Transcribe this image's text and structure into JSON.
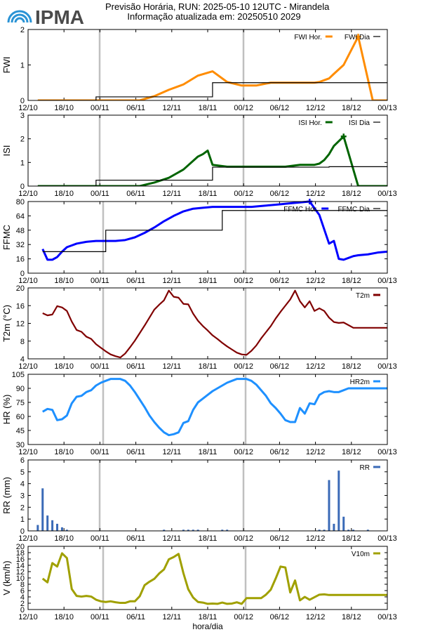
{
  "header": {
    "brand": "IPMA",
    "title_line1": "Previsão Horária, RUN: 2025-05-10 12UTC - Mirandela",
    "title_line2": "Informação atualizada em: 20250510 2029"
  },
  "colors": {
    "fwi": "#ff8c00",
    "isi": "#006400",
    "ffmc": "#0000ff",
    "t2m": "#800000",
    "hr2m": "#1e90ff",
    "rr": "#3a6ab7",
    "v10m": "#a0a000",
    "day": "#000000",
    "daysep": "#c0c0c0",
    "logo": "#2a93d5"
  },
  "chart_data": [
    {
      "id": "fwi",
      "type": "line",
      "ylabel": "FWI",
      "ylim": [
        0,
        2
      ],
      "yticks": [
        "0",
        "1",
        "2"
      ],
      "xticks": [
        "12/10",
        "18/10",
        "00/11",
        "06/11",
        "12/11",
        "18/11",
        "00/12",
        "06/12",
        "12/12",
        "18/12",
        "00/13"
      ],
      "series": [
        {
          "name": "FWI Hor.",
          "style": "line-marker",
          "x": [
            0,
            21,
            24,
            27,
            30,
            33,
            36,
            39,
            42,
            45,
            48,
            51,
            54,
            57,
            58,
            59,
            60,
            61,
            63,
            66,
            69,
            72
          ],
          "y": [
            0,
            0,
            0.12,
            0.3,
            0.45,
            0.7,
            0.82,
            0.52,
            0.42,
            0.42,
            0.5,
            0.5,
            0.5,
            0.5,
            0.52,
            0.57,
            0.62,
            0.75,
            1.0,
            1.8,
            0,
            0
          ]
        },
        {
          "name": "FWI Dia",
          "style": "step",
          "x": [
            0,
            12,
            36,
            60,
            72
          ],
          "y": [
            0,
            0.1,
            0.5,
            0.5,
            0.5
          ]
        }
      ]
    },
    {
      "id": "isi",
      "type": "line",
      "ylabel": "ISI",
      "ylim": [
        0,
        3
      ],
      "yticks": [
        "0",
        "1",
        "2",
        "3"
      ],
      "xticks": [
        "12/10",
        "18/10",
        "00/11",
        "06/11",
        "12/11",
        "18/11",
        "00/12",
        "06/12",
        "12/12",
        "18/12",
        "00/13"
      ],
      "series": [
        {
          "name": "ISI Hor.",
          "style": "line-marker",
          "x": [
            0,
            21,
            24,
            27,
            30,
            33,
            34,
            35,
            36,
            39,
            42,
            45,
            48,
            51,
            54,
            57,
            58,
            59,
            60,
            61,
            63,
            66,
            69,
            72
          ],
          "y": [
            0,
            0,
            0.15,
            0.35,
            0.7,
            1.25,
            1.35,
            1.5,
            0.9,
            0.82,
            0.82,
            0.82,
            0.82,
            0.82,
            0.9,
            0.9,
            0.95,
            1.1,
            1.35,
            1.7,
            2.1,
            0,
            0,
            0
          ]
        },
        {
          "name": "ISI Dia",
          "style": "step",
          "x": [
            0,
            12,
            36,
            60,
            72
          ],
          "y": [
            0,
            0.25,
            0.8,
            0.82,
            0.82
          ]
        }
      ]
    },
    {
      "id": "ffmc",
      "type": "line",
      "ylabel": "FFMC",
      "ylim": [
        0,
        80
      ],
      "yticks": [
        "0",
        "16",
        "32",
        "48",
        "64",
        "80"
      ],
      "xticks": [
        "12/10",
        "18/10",
        "00/11",
        "06/11",
        "12/11",
        "18/11",
        "00/12",
        "06/12",
        "12/12",
        "18/12",
        "00/13"
      ],
      "series": [
        {
          "name": "FFMC Hor.",
          "style": "line-marker",
          "x": [
            1,
            2,
            3,
            4,
            5,
            6,
            7,
            8,
            10,
            12,
            14,
            16,
            18,
            20,
            22,
            24,
            26,
            28,
            30,
            32,
            34,
            36,
            38,
            40,
            42,
            44,
            46,
            48,
            50,
            52,
            54,
            56,
            58,
            60,
            61,
            62,
            63,
            64,
            65,
            66,
            68,
            70,
            72
          ],
          "y": [
            27,
            15,
            15,
            18,
            24,
            29,
            31,
            33,
            35,
            36,
            36,
            36,
            37,
            40,
            45,
            51,
            58,
            64,
            69,
            72,
            73,
            74,
            74,
            74,
            74,
            74,
            75,
            76,
            77,
            78,
            79,
            80,
            65,
            33,
            36,
            16,
            15,
            17,
            19,
            20,
            21,
            23,
            24
          ]
        },
        {
          "name": "FFMC Dia",
          "style": "step",
          "x": [
            1,
            14,
            38,
            62,
            72
          ],
          "y": [
            24,
            48,
            70,
            70,
            70
          ]
        }
      ]
    },
    {
      "id": "t2m",
      "type": "line",
      "ylabel": "T2m (°C)",
      "ylim": [
        4,
        20
      ],
      "yticks": [
        "4",
        "8",
        "12",
        "16",
        "20"
      ],
      "xticks": [
        "12/10",
        "18/10",
        "00/11",
        "06/11",
        "12/11",
        "18/11",
        "00/12",
        "06/12",
        "12/12",
        "18/12",
        "00/13"
      ],
      "series": [
        {
          "name": "T2m",
          "x": [
            1,
            2,
            3,
            4,
            5,
            6,
            7,
            8,
            9,
            10,
            11,
            12,
            13,
            14,
            15,
            16,
            17,
            18,
            19,
            20,
            21,
            22,
            23,
            24,
            25,
            26,
            27,
            28,
            29,
            30,
            31,
            32,
            33,
            34,
            35,
            36,
            37,
            38,
            39,
            40,
            41,
            42,
            43,
            44,
            45,
            46,
            47,
            48,
            49,
            50,
            51,
            52,
            53,
            54,
            55,
            56,
            57,
            58,
            59,
            60,
            61,
            62,
            63,
            64,
            65,
            66,
            67,
            68,
            69,
            70,
            71,
            72
          ],
          "y": [
            14.3,
            13.8,
            14.0,
            15.9,
            15.6,
            14.8,
            12.4,
            10.5,
            10.1,
            9.0,
            8.5,
            7.3,
            6.5,
            5.7,
            5.0,
            4.6,
            4.3,
            5.2,
            6.6,
            8.1,
            9.8,
            11.5,
            13.3,
            15.1,
            16.2,
            17.2,
            19.4,
            18.0,
            17.8,
            16.4,
            16.3,
            14.2,
            12.6,
            11.4,
            10.4,
            9.3,
            8.5,
            7.6,
            6.8,
            6.1,
            5.4,
            5.0,
            4.9,
            5.8,
            7.0,
            8.6,
            10.0,
            11.4,
            13.1,
            14.6,
            16.0,
            17.4,
            19.4,
            17.0,
            15.6,
            17.0,
            14.8,
            15.4,
            14.8,
            13.3,
            12.3,
            12.1,
            12.2,
            11.6,
            11.0,
            11.0,
            11.0,
            11.0,
            11.0,
            11.0,
            11.0,
            11.0
          ]
        }
      ]
    },
    {
      "id": "hr2m",
      "type": "line",
      "ylabel": "HR (%)",
      "ylim": [
        30,
        105
      ],
      "yticks": [
        "30",
        "45",
        "60",
        "75",
        "90",
        "105"
      ],
      "xticks": [
        "12/10",
        "18/10",
        "00/11",
        "06/11",
        "12/11",
        "18/11",
        "00/12",
        "06/12",
        "12/12",
        "18/12",
        "00/13"
      ],
      "series": [
        {
          "name": "HR2m",
          "x": [
            1,
            2,
            3,
            4,
            5,
            6,
            7,
            8,
            9,
            10,
            11,
            12,
            13,
            14,
            15,
            16,
            17,
            18,
            19,
            20,
            21,
            22,
            23,
            24,
            25,
            26,
            27,
            28,
            29,
            30,
            31,
            32,
            33,
            34,
            35,
            36,
            37,
            38,
            39,
            40,
            41,
            42,
            43,
            44,
            45,
            46,
            47,
            48,
            49,
            50,
            51,
            52,
            53,
            54,
            55,
            56,
            57,
            58,
            59,
            60,
            61,
            62,
            63,
            64,
            65,
            66,
            67,
            68,
            69,
            70,
            71,
            72
          ],
          "y": [
            65,
            68,
            67,
            56,
            57,
            61,
            74,
            81,
            82,
            86,
            88,
            93,
            96,
            98,
            100,
            100,
            100,
            98,
            93,
            86,
            78,
            70,
            61,
            54,
            48,
            43,
            40,
            41,
            43,
            53,
            55,
            67,
            75,
            79,
            83,
            87,
            90,
            93,
            96,
            98,
            100,
            100,
            100,
            98,
            94,
            88,
            82,
            74,
            69,
            63,
            56,
            54,
            54,
            69,
            63,
            74,
            73,
            83,
            86,
            87,
            86,
            86,
            88,
            90,
            90,
            90,
            90,
            90,
            90,
            90,
            90,
            90
          ]
        }
      ]
    },
    {
      "id": "rr",
      "type": "bar",
      "ylabel": "RR (mm)",
      "ylim": [
        0,
        6
      ],
      "yticks": [
        "0",
        "1",
        "2",
        "3",
        "4",
        "5",
        "6"
      ],
      "xticks": [
        "12/10",
        "18/10",
        "00/11",
        "06/11",
        "12/11",
        "18/11",
        "00/12",
        "06/12",
        "12/12",
        "18/12",
        "00/13"
      ],
      "series": [
        {
          "name": "RR",
          "x": [
            0,
            1,
            2,
            3,
            4,
            5,
            6,
            26,
            30,
            31,
            32,
            33,
            38,
            39,
            58,
            59,
            60,
            61,
            62,
            63,
            64,
            65,
            68
          ],
          "y": [
            0.5,
            3.6,
            1.3,
            0.9,
            0.6,
            0.3,
            0.1,
            0.1,
            0.1,
            0.1,
            0.1,
            0.1,
            0.1,
            0.1,
            0.1,
            0.1,
            4.3,
            0.6,
            5.1,
            1.2,
            0.1,
            0.1,
            0.1
          ]
        }
      ]
    },
    {
      "id": "v10m",
      "type": "line",
      "ylabel": "V (km/h)",
      "xlabel": "hora/dia",
      "ylim": [
        0,
        20
      ],
      "yticks": [
        "0",
        "2",
        "4",
        "6",
        "8",
        "10",
        "12",
        "14",
        "16",
        "18",
        "20"
      ],
      "xticks": [
        "12/10",
        "18/10",
        "00/11",
        "06/11",
        "12/11",
        "18/11",
        "00/12",
        "06/12",
        "12/12",
        "18/12",
        "00/13"
      ],
      "series": [
        {
          "name": "V10m",
          "x": [
            1,
            2,
            3,
            4,
            5,
            6,
            7,
            8,
            9,
            10,
            11,
            12,
            13,
            14,
            15,
            16,
            17,
            18,
            19,
            20,
            21,
            22,
            23,
            24,
            25,
            26,
            27,
            28,
            29,
            30,
            31,
            32,
            33,
            34,
            35,
            36,
            37,
            38,
            39,
            40,
            41,
            42,
            43,
            44,
            45,
            46,
            47,
            48,
            49,
            50,
            51,
            52,
            53,
            54,
            55,
            56,
            57,
            58,
            59,
            60,
            61,
            62,
            63,
            64,
            65,
            66,
            67,
            68,
            69,
            70,
            71,
            72
          ],
          "y": [
            9.8,
            8.6,
            14.7,
            13.6,
            17.8,
            16.3,
            6.5,
            4.3,
            4.1,
            4.3,
            4.1,
            3.1,
            2.6,
            2.4,
            2.6,
            2.3,
            2.1,
            2.1,
            2.6,
            2.6,
            4.2,
            7.7,
            8.8,
            9.7,
            11.4,
            12.7,
            15.9,
            16.6,
            17.6,
            11.5,
            6.4,
            3.8,
            2.4,
            2.2,
            1.8,
            1.9,
            1.8,
            2.2,
            1.8,
            1.9,
            2.3,
            1.8,
            3.6,
            3.6,
            3.6,
            3.6,
            4.7,
            6.3,
            9.8,
            13.6,
            13.3,
            5.4,
            9.2,
            2.9,
            4.0,
            3.1,
            3.9,
            4.7,
            4.8,
            4.6,
            4.6,
            4.6,
            4.6,
            4.6,
            4.6,
            4.6,
            4.6,
            4.6,
            4.6,
            4.6,
            4.6,
            4.6
          ]
        }
      ]
    }
  ]
}
